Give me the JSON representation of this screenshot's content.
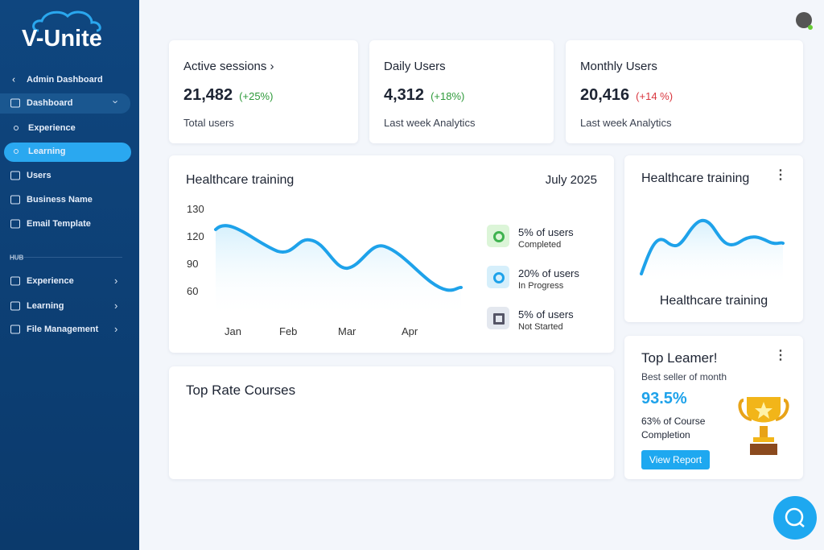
{
  "sidebar": {
    "logo": "V-Unite",
    "nav": [
      "Admin Dashboard",
      "Dashboard",
      "Experience",
      "Learning",
      "Users",
      "Business Name",
      "Email Template"
    ],
    "hub_label": "HUB",
    "hub_nav": [
      "Experience",
      "Learning",
      "File Management"
    ]
  },
  "stats": [
    {
      "title": "Active sessions",
      "value": "21,482",
      "change": "(+25%)",
      "caption": "Total users"
    },
    {
      "title": "Daily Users",
      "value": "4,312",
      "change": "(+18%)",
      "caption": "Last week Analytics"
    },
    {
      "title": "Monthly Users",
      "value": "20,416",
      "change": "(+14 %)",
      "caption": "Last week Analytics"
    }
  ],
  "training_card": {
    "title": "Healthcare training",
    "date": "July 2025",
    "y_labels": [
      "130",
      "120",
      "90",
      "60"
    ],
    "x_labels": [
      "Jan",
      "Feb",
      "Mar",
      "Apr"
    ],
    "legend": [
      {
        "label": "5% of users",
        "sub": "Completed"
      },
      {
        "label": "20% of users",
        "sub": "In Progress"
      },
      {
        "label": "5% of users",
        "sub": "Not Started"
      }
    ]
  },
  "small_card": {
    "title": "Healthcare training",
    "caption": "Healthcare training"
  },
  "courses_card": {
    "title": "Top Rate Courses"
  },
  "learner_card": {
    "title": "Top Leamer!",
    "subtitle": "Best seller of month",
    "value": "93.5%",
    "description": "63% of Course Completion",
    "button": "View Report"
  }
}
